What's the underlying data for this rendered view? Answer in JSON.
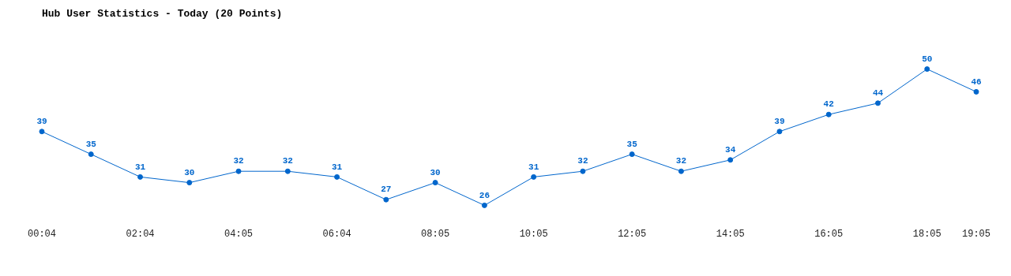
{
  "chart_data": {
    "type": "line",
    "title": "Hub User Statistics - Today (20 Points)",
    "categories": [
      "00:04",
      null,
      "02:04",
      null,
      "04:05",
      null,
      "06:04",
      null,
      "08:05",
      null,
      "10:05",
      null,
      "12:05",
      null,
      "14:05",
      null,
      "16:05",
      null,
      "18:05",
      "19:05"
    ],
    "series": [
      {
        "color": "#0066cc",
        "values": [
          39,
          35,
          31,
          30,
          32,
          32,
          31,
          27,
          30,
          26,
          31,
          32,
          35,
          32,
          34,
          39,
          42,
          44,
          50,
          46
        ]
      }
    ],
    "data_labels": true,
    "marker": "circle",
    "line_style": "solid",
    "grid": false,
    "legend": false
  }
}
